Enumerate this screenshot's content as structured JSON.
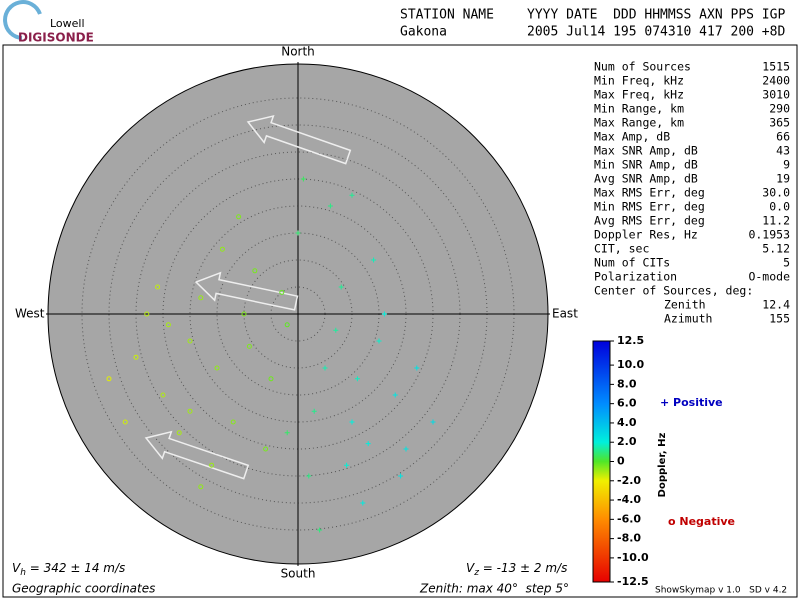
{
  "header": {
    "logo_top": "Lowell",
    "logo_bottom": "DIGISONDE",
    "station_label": "STATION NAME",
    "station": "Gakona",
    "date_label": "YYYY DATE  DDD HHMMSS AXN PPS IGP",
    "date": "2005 Jul14 195 074310 417 200 +8D"
  },
  "directions": {
    "north": "North",
    "south": "South",
    "east": "East",
    "west": "West"
  },
  "stats": [
    [
      "Num of Sources",
      "1515"
    ],
    [
      "Min Freq, kHz",
      "2400"
    ],
    [
      "Max Freq, kHz",
      "3010"
    ],
    [
      "Min Range, km",
      "290"
    ],
    [
      "Max Range, km",
      "365"
    ],
    [
      "Max Amp, dB",
      "66"
    ],
    [
      "Max SNR Amp, dB",
      "43"
    ],
    [
      "Min SNR Amp, dB",
      "9"
    ],
    [
      "Avg SNR Amp, dB",
      "19"
    ],
    [
      "Max RMS Err, deg",
      "30.0"
    ],
    [
      "Min RMS Err, deg",
      "0.0"
    ],
    [
      "Avg RMS Err, deg",
      "11.2"
    ],
    [
      "Doppler Res, Hz",
      "0.1953"
    ],
    [
      "CIT, sec",
      "5.12"
    ],
    [
      "Num of CITs",
      "5"
    ],
    [
      "Polarization",
      "O-mode"
    ]
  ],
  "center": {
    "title": "Center of Sources, deg:",
    "rows": [
      [
        "Zenith",
        "12.4"
      ],
      [
        "Azimuth",
        "155"
      ]
    ]
  },
  "colorbar": {
    "label": "Doppler, Hz",
    "lim": [
      -12.5,
      12.5
    ],
    "ticks": [
      12.5,
      {
        "value": 10,
        "label": "10.0"
      },
      {
        "value": 8,
        "label": "8.0"
      },
      {
        "value": 6,
        "label": "6.0"
      },
      {
        "value": 4,
        "label": "4.0"
      },
      {
        "value": 2,
        "label": "2.0"
      },
      0,
      {
        "value": -2,
        "label": "-2.0"
      },
      {
        "value": -4,
        "label": "-4.0"
      },
      {
        "value": -6,
        "label": "-6.0"
      },
      {
        "value": -8,
        "label": "-8.0"
      },
      {
        "value": -10,
        "label": "-10.0"
      },
      -12.5
    ]
  },
  "legend": {
    "positive": "+ Positive",
    "negative": "o Negative"
  },
  "footer": {
    "vh_symbol": "V",
    "vh_sub": "h",
    "vh_text": " = 342 ± 14 m/s",
    "vz_symbol": "V",
    "vz_sub": "z",
    "vz_text": " = -13 ± 2 m/s",
    "coords": "Geographic coordinates",
    "zenith": "Zenith: max 40°  step 5°",
    "version": "ShowSkymap v 1.0   SD v 4.2"
  },
  "sources": {
    "east": [
      -20,
      -15,
      -25,
      -10,
      -18,
      -30,
      -12,
      -8,
      -22,
      -5,
      -28,
      -16,
      -35,
      -3,
      -14,
      -20,
      -9,
      -26,
      -6,
      -32,
      -11,
      -2,
      -18,
      -24,
      5,
      10,
      15,
      8,
      20,
      2,
      12,
      18,
      0,
      6,
      14,
      22,
      3,
      9,
      25,
      16,
      4,
      11,
      7,
      19,
      1,
      13,
      -2,
      10
    ],
    "north": [
      -5,
      -10,
      -15,
      0,
      3,
      -8,
      -20,
      8,
      -22,
      -12,
      0,
      -28,
      -12,
      4,
      12,
      -18,
      -6,
      5,
      -25,
      -20,
      18,
      -2,
      -32,
      -2,
      -10,
      -20,
      -5,
      5,
      -25,
      -30,
      -35,
      -15,
      15,
      20,
      10,
      -10,
      -18,
      -28,
      -20,
      0,
      -40,
      -12,
      -3,
      -30,
      25,
      -24,
      -22,
      22
    ],
    "doppler": [
      -1.0,
      -0.8,
      -1.2,
      -0.6,
      -0.9,
      -1.5,
      -0.7,
      -0.5,
      -1.1,
      -0.4,
      -1.3,
      -0.9,
      -1.8,
      -0.3,
      -0.8,
      -1.0,
      -0.6,
      -1.4,
      -0.5,
      -1.6,
      -0.6,
      -0.2,
      -0.8,
      -1.1,
      1.5,
      2.0,
      1.8,
      1.2,
      2.5,
      1.0,
      2.2,
      2.4,
      0.8,
      1.0,
      1.6,
      2.6,
      1.1,
      1.9,
      2.8,
      2.0,
      0.9,
      1.7,
      1.3,
      2.5,
      0.6,
      2.1,
      0.7,
      1.2
    ]
  }
}
